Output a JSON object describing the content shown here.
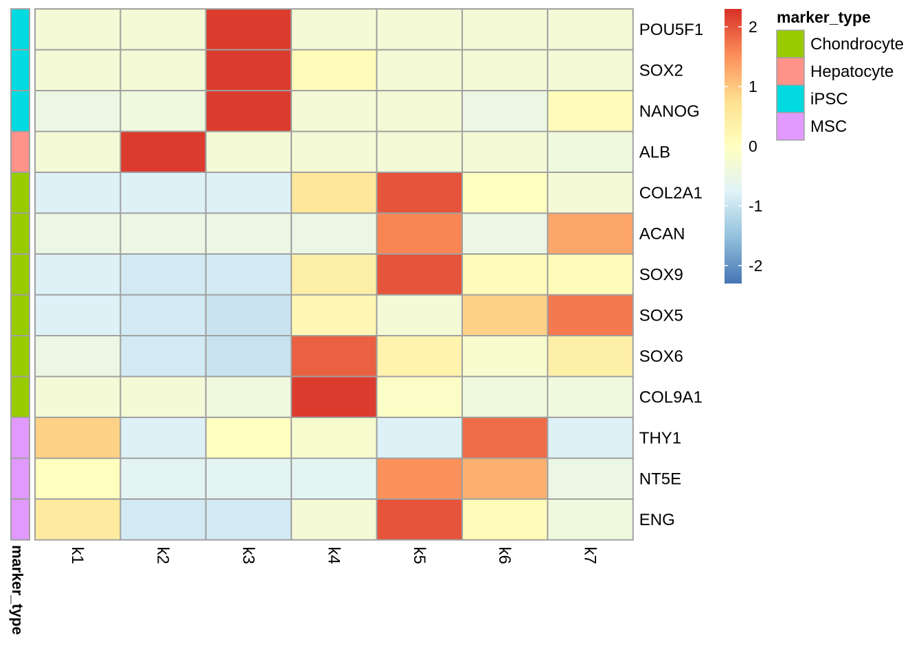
{
  "chart_data": {
    "type": "heatmap",
    "columns": [
      "k1",
      "k2",
      "k3",
      "k4",
      "k5",
      "k6",
      "k7"
    ],
    "rows": [
      "POU5F1",
      "SOX2",
      "NANOG",
      "ALB",
      "COL2A1",
      "ACAN",
      "SOX9",
      "SOX5",
      "SOX6",
      "COL9A1",
      "THY1",
      "NT5E",
      "ENG"
    ],
    "row_annotation_title": "marker_type",
    "row_annotation": [
      "iPSC",
      "iPSC",
      "iPSC",
      "Hepatocyte",
      "Chondrocyte",
      "Chondrocyte",
      "Chondrocyte",
      "Chondrocyte",
      "Chondrocyte",
      "Chondrocyte",
      "MSC",
      "MSC",
      "MSC"
    ],
    "values": [
      [
        -0.3,
        -0.3,
        2.2,
        -0.3,
        -0.3,
        -0.3,
        -0.3
      ],
      [
        -0.3,
        -0.3,
        2.2,
        0.1,
        -0.3,
        -0.3,
        -0.3
      ],
      [
        -0.5,
        -0.4,
        2.2,
        -0.3,
        -0.3,
        -0.5,
        0.1
      ],
      [
        -0.3,
        2.2,
        -0.3,
        -0.3,
        -0.3,
        -0.3,
        -0.4
      ],
      [
        -0.8,
        -0.8,
        -0.8,
        0.6,
        2.0,
        0.0,
        -0.3
      ],
      [
        -0.5,
        -0.5,
        -0.5,
        -0.5,
        1.6,
        -0.5,
        1.3
      ],
      [
        -0.8,
        -0.9,
        -0.9,
        0.4,
        2.0,
        0.1,
        0.1
      ],
      [
        -0.8,
        -0.9,
        -1.0,
        0.2,
        -0.3,
        0.9,
        1.7
      ],
      [
        -0.5,
        -0.9,
        -1.0,
        1.9,
        0.3,
        -0.2,
        0.4
      ],
      [
        -0.3,
        -0.3,
        -0.4,
        2.2,
        -0.1,
        -0.4,
        -0.4
      ],
      [
        0.9,
        -0.8,
        0.0,
        -0.2,
        -0.8,
        1.8,
        -0.8
      ],
      [
        0.0,
        -0.7,
        -0.7,
        -0.7,
        1.5,
        1.2,
        -0.5
      ],
      [
        0.5,
        -0.9,
        -0.9,
        -0.3,
        2.0,
        0.1,
        -0.4
      ]
    ],
    "color_scale": {
      "min": -2.3,
      "max": 2.3,
      "stops": [
        "#4575b4",
        "#91bfdb",
        "#e0f3f8",
        "#ffffbf",
        "#fee090",
        "#fc8d59",
        "#d73027"
      ],
      "ticks": [
        2,
        1,
        0,
        -1,
        -2
      ]
    },
    "legend": {
      "title": "marker_type",
      "items": [
        {
          "label": "Chondrocyte",
          "color": "#99cc00"
        },
        {
          "label": "Hepatocyte",
          "color": "#ff9289"
        },
        {
          "label": "iPSC",
          "color": "#00dae0"
        },
        {
          "label": "MSC",
          "color": "#e199ff"
        }
      ]
    },
    "title": "",
    "xlabel": "",
    "ylabel": "",
    "cell_border_color": "#a0a0a0"
  }
}
